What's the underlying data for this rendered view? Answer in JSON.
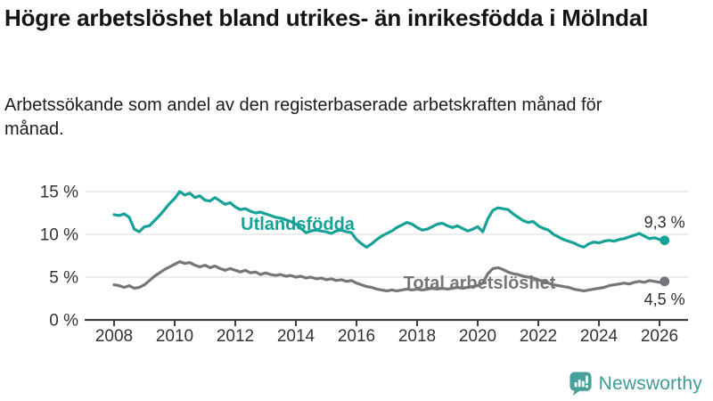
{
  "header": {
    "title": "Högre arbetslöshet bland utrikes- än inrikesfödda i Mölndal",
    "subtitle": "Arbetssökande som andel av den registerbaserade arbetskraften månad för månad."
  },
  "footer": {
    "brand": "Newsworthy",
    "logo_icon": "speech-bubble-bar-chart-icon"
  },
  "colors": {
    "series_foreign_born": "#17a297",
    "series_total": "#76767a",
    "grid": "#e1e1e1",
    "axis": "#3c3c3c",
    "tick_text": "#333333",
    "value_text": "#2e2e2e",
    "brand_teal": "#47a09a",
    "background": "#ffffff"
  },
  "chart_data": {
    "type": "line",
    "title": "Högre arbetslöshet bland utrikes- än inrikesfödda i Mölndal",
    "xlabel": "",
    "ylabel": "",
    "unit": "%",
    "x_start": 2008.0,
    "x_step": 0.16667,
    "xlim": [
      2008,
      2026.4
    ],
    "ylim": [
      0,
      15.5
    ],
    "grid": "horizontal",
    "x_ticks": [
      {
        "value": 2008,
        "label": "2008"
      },
      {
        "value": 2010,
        "label": "2010"
      },
      {
        "value": 2012,
        "label": "2012"
      },
      {
        "value": 2014,
        "label": "2014"
      },
      {
        "value": 2016,
        "label": "2016"
      },
      {
        "value": 2018,
        "label": "2018"
      },
      {
        "value": 2020,
        "label": "2020"
      },
      {
        "value": 2022,
        "label": "2022"
      },
      {
        "value": 2024,
        "label": "2024"
      },
      {
        "value": 2026,
        "label": "2026"
      }
    ],
    "y_ticks": [
      {
        "value": 0,
        "label": "0 %"
      },
      {
        "value": 5,
        "label": "5 %"
      },
      {
        "value": 10,
        "label": "10 %"
      },
      {
        "value": 15,
        "label": "15 %"
      }
    ],
    "series": [
      {
        "name": "Total arbetslöshet",
        "slug": "total-arbetsloshet",
        "color": "#76767a",
        "end_label": "4,5 %",
        "end_value": 4.5,
        "label_pos": {
          "x": 2020.06,
          "y": 4.38
        },
        "end_label_offset": {
          "dx": 0,
          "dy": 20
        },
        "values": [
          4.1,
          4.0,
          3.8,
          4.0,
          3.7,
          3.8,
          4.1,
          4.6,
          5.1,
          5.5,
          5.9,
          6.2,
          6.5,
          6.8,
          6.6,
          6.7,
          6.4,
          6.2,
          6.4,
          6.1,
          6.3,
          6.0,
          5.8,
          6.0,
          5.8,
          5.6,
          5.8,
          5.5,
          5.6,
          5.3,
          5.5,
          5.3,
          5.2,
          5.3,
          5.1,
          5.2,
          5.0,
          5.1,
          4.9,
          5.0,
          4.8,
          4.9,
          4.7,
          4.8,
          4.6,
          4.7,
          4.5,
          4.6,
          4.3,
          4.1,
          3.9,
          3.8,
          3.6,
          3.5,
          3.4,
          3.5,
          3.4,
          3.5,
          3.6,
          3.5,
          3.6,
          3.5,
          3.6,
          3.7,
          3.6,
          3.7,
          3.6,
          3.7,
          3.8,
          3.7,
          3.8,
          3.9,
          4.0,
          4.3,
          5.4,
          6.0,
          6.1,
          5.9,
          5.6,
          5.4,
          5.3,
          5.1,
          5.0,
          4.9,
          4.7,
          4.5,
          4.3,
          4.1,
          4.0,
          3.9,
          3.8,
          3.6,
          3.5,
          3.4,
          3.5,
          3.6,
          3.7,
          3.8,
          4.0,
          4.1,
          4.2,
          4.3,
          4.2,
          4.4,
          4.5,
          4.4,
          4.6,
          4.5,
          4.4,
          4.5
        ]
      },
      {
        "name": "Utlandsfödda",
        "slug": "utlandsfodda",
        "color": "#17a297",
        "end_label": "9,3 %",
        "end_value": 9.3,
        "label_pos": {
          "x": 2014.06,
          "y": 11.25
        },
        "end_label_offset": {
          "dx": 0,
          "dy": -20
        },
        "values": [
          12.3,
          12.2,
          12.4,
          12.0,
          10.6,
          10.3,
          10.9,
          11.0,
          11.6,
          12.2,
          12.9,
          13.6,
          14.2,
          15.0,
          14.6,
          14.8,
          14.3,
          14.5,
          14.0,
          13.9,
          14.3,
          13.9,
          13.5,
          13.7,
          13.2,
          12.9,
          13.0,
          12.7,
          12.5,
          12.6,
          12.4,
          12.2,
          12.0,
          11.9,
          11.7,
          11.5,
          11.2,
          10.7,
          10.2,
          10.4,
          10.5,
          10.4,
          10.3,
          10.1,
          10.4,
          10.5,
          10.3,
          10.2,
          9.4,
          8.9,
          8.5,
          8.9,
          9.4,
          9.8,
          10.1,
          10.4,
          10.8,
          11.1,
          11.4,
          11.2,
          10.8,
          10.5,
          10.6,
          10.9,
          11.2,
          11.3,
          11.0,
          10.8,
          11.0,
          10.7,
          10.4,
          10.6,
          10.9,
          10.3,
          11.8,
          12.8,
          13.1,
          13.0,
          12.9,
          12.4,
          12.0,
          11.6,
          11.4,
          11.5,
          11.0,
          10.7,
          10.5,
          10.0,
          9.7,
          9.4,
          9.2,
          9.0,
          8.7,
          8.5,
          8.9,
          9.1,
          9.0,
          9.2,
          9.3,
          9.2,
          9.4,
          9.5,
          9.7,
          9.9,
          10.1,
          9.8,
          9.5,
          9.6,
          9.4,
          9.3
        ]
      }
    ]
  }
}
